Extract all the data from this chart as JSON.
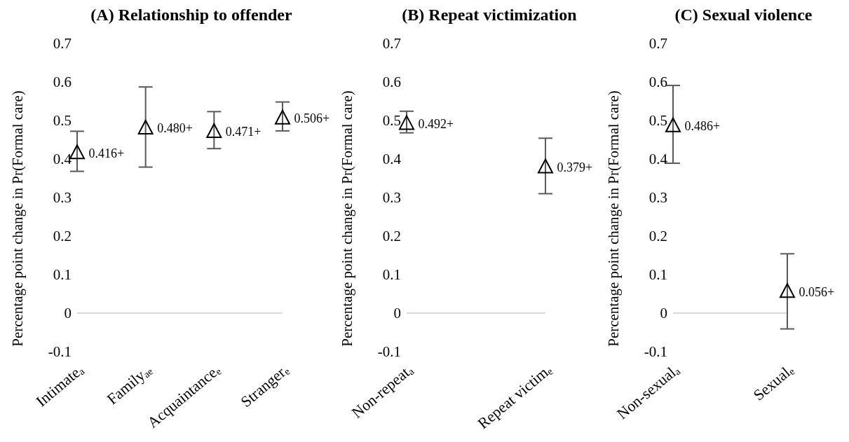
{
  "chart_data": [
    {
      "type": "scatter",
      "title": "(A) Relationship to offender",
      "ylabel": "Percentage point change in Pr(Formal care)",
      "categories": [
        "Intimate$_{a}$",
        "Family$_{ae}$",
        "Acquaintance$_{e}$",
        "Stranger$_{e}$"
      ],
      "series": [
        {
          "color": "#000000",
          "values": [
            0.416,
            0.48,
            0.471,
            0.506
          ],
          "errors": [
            [
              0.368,
              0.472
            ],
            [
              0.379,
              0.587
            ],
            [
              0.427,
              0.523
            ],
            [
              0.473,
              0.548
            ]
          ],
          "value_labels": [
            "0.416+",
            "0.480+",
            "0.471+",
            "0.506+"
          ]
        }
      ],
      "ylim": [
        -0.1,
        0.7
      ],
      "yticks": [
        -0.1,
        0,
        0.1,
        0.2,
        0.3,
        0.4,
        0.5,
        0.6,
        0.7
      ],
      "marker": "triangle",
      "ref_lines": [
        {
          "axis": "y",
          "value": 0,
          "color": "#d9d9d9"
        }
      ]
    },
    {
      "type": "scatter",
      "title": "(B) Repeat victimization",
      "ylabel": "Percentage point change in  Pr(Formal care)",
      "categories": [
        "Non-repeat$_{a}$",
        "Repeat victim$_{e}$"
      ],
      "series": [
        {
          "color": "#000000",
          "values": [
            0.492,
            0.379
          ],
          "errors": [
            [
              0.468,
              0.524
            ],
            [
              0.31,
              0.454
            ]
          ],
          "value_labels": [
            "0.492+",
            "0.379+"
          ]
        }
      ],
      "ylim": [
        -0.1,
        0.7
      ],
      "yticks": [
        -0.1,
        0,
        0.1,
        0.2,
        0.3,
        0.4,
        0.5,
        0.6,
        0.7
      ],
      "marker": "triangle",
      "ref_lines": [
        {
          "axis": "y",
          "value": 0,
          "color": "#d9d9d9"
        }
      ]
    },
    {
      "type": "scatter",
      "title": "(C) Sexual violence",
      "ylabel": "Percentage point change in  Pr(Formal care)",
      "categories": [
        "Non-sexual$_{a}$",
        "Sexual$_{e}$"
      ],
      "series": [
        {
          "color": "#000000",
          "values": [
            0.486,
            0.056
          ],
          "errors": [
            [
              0.389,
              0.591
            ],
            [
              -0.041,
              0.154
            ]
          ],
          "value_labels": [
            "0.486+",
            "0.056+"
          ]
        }
      ],
      "ylim": [
        -0.1,
        0.7
      ],
      "yticks": [
        -0.1,
        0,
        0.1,
        0.2,
        0.3,
        0.4,
        0.5,
        0.6,
        0.7
      ],
      "marker": "triangle",
      "ref_lines": [
        {
          "axis": "y",
          "value": 0,
          "color": "#d9d9d9"
        }
      ]
    }
  ]
}
